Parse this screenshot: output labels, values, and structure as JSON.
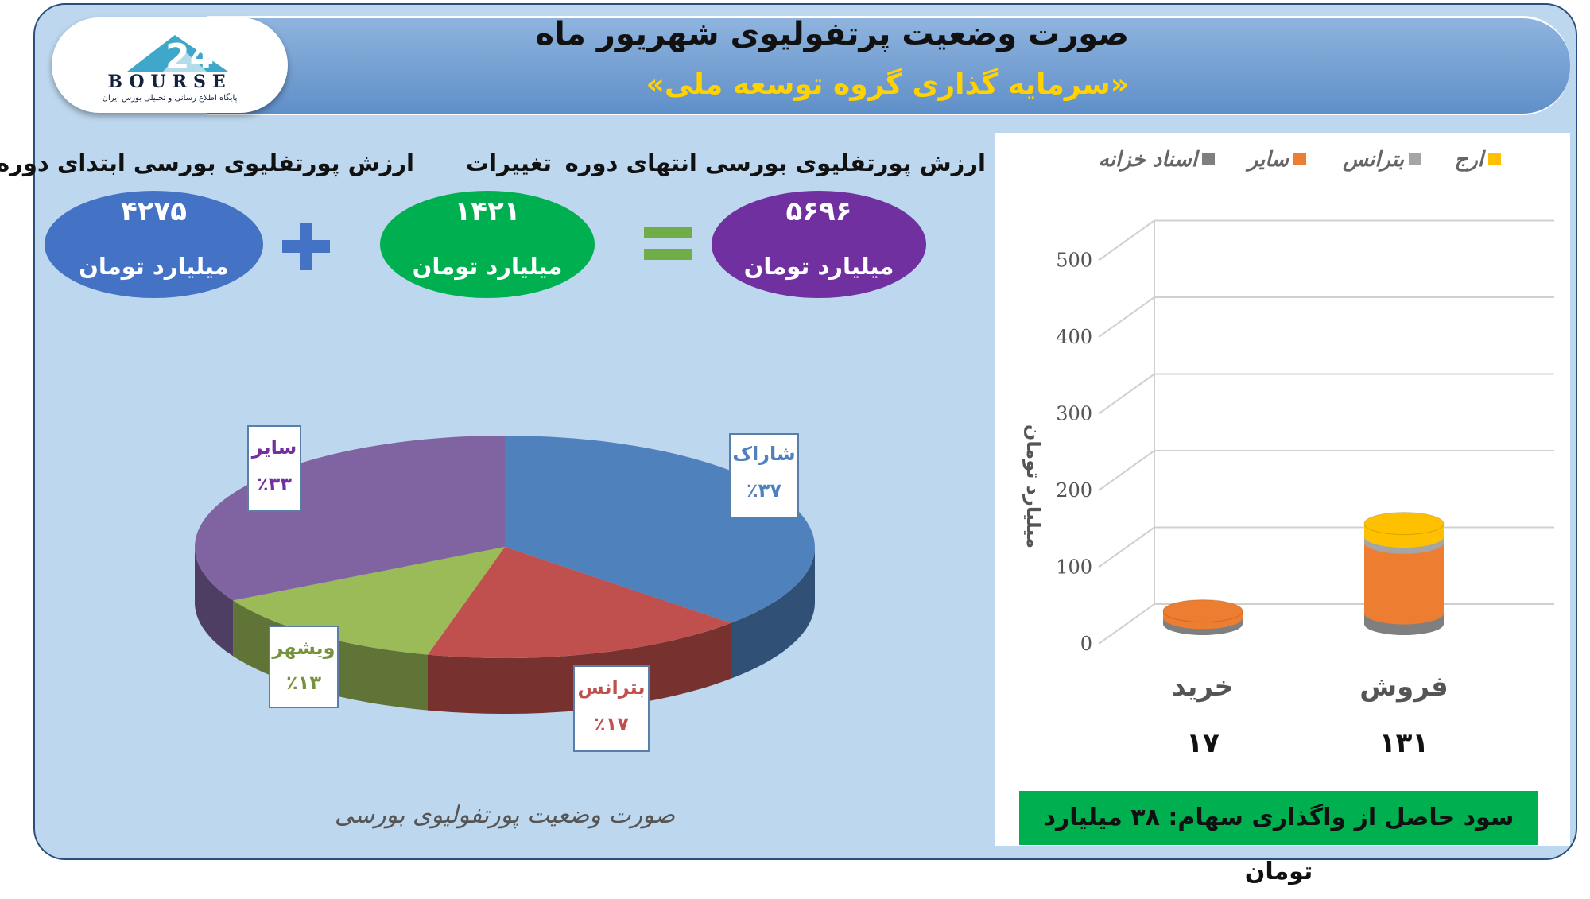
{
  "header": {
    "title": "صورت وضعیت پرتفولیوی شهریور ماه",
    "subtitle": "«سرمایه گذاری گروه توسعه ملی»"
  },
  "logo": {
    "text": "BOURSE",
    "tagline": "پایگاه اطلاع رسانی و تحلیلی بورس ایران"
  },
  "summary": {
    "start": {
      "label": "ارزش پورتفلیوی بورسی ابتدای دوره",
      "value": "۴۲۷۵",
      "unit": "میلیارد تومان",
      "color": "#4472c4"
    },
    "change": {
      "label": "تغییرات",
      "value": "۱۴۲۱",
      "unit": "میلیارد تومان",
      "color": "#00b050"
    },
    "end": {
      "label": "ارزش پورتفلیوی بورسی انتهای دوره",
      "value": "۵۶۹۶",
      "unit": "میلیارد تومان",
      "color": "#7030a0"
    },
    "plus_color": "#4472c4",
    "equals_color": "#70ad47"
  },
  "chart_data": [
    {
      "type": "pie",
      "title": "صورت وضعیت پورتفولیوی بورسی",
      "slices": [
        {
          "name": "شاراک",
          "value": 37,
          "display": "٪۳۷",
          "color": "#4f81bd"
        },
        {
          "name": "بترانس",
          "value": 17,
          "display": "٪۱۷",
          "color": "#c0504d"
        },
        {
          "name": "ویشهر",
          "value": 13,
          "display": "٪۱۳",
          "color": "#9bbb59"
        },
        {
          "name": "سایر",
          "value": 33,
          "display": "٪۳۳",
          "color": "#8064a2"
        }
      ]
    },
    {
      "type": "bar",
      "stacked": true,
      "categories": [
        "فروش",
        "خرید"
      ],
      "category_totals": [
        "۱۳۱",
        "۱۷"
      ],
      "ylabel": "میلیارد تومان",
      "ylim": [
        0,
        500
      ],
      "yticks": [
        0,
        100,
        200,
        300,
        400,
        500
      ],
      "legend_position": "top",
      "series": [
        {
          "name": "ارج",
          "values": [
            17,
            0
          ],
          "color": "#ffc000"
        },
        {
          "name": "بترانس",
          "values": [
            8,
            0
          ],
          "color": "#a5a5a5"
        },
        {
          "name": "سایر",
          "values": [
            92,
            9
          ],
          "color": "#ed7d31"
        },
        {
          "name": "اسناد خزانه",
          "values": [
            14,
            8
          ],
          "color": "#7f7f7f"
        }
      ]
    }
  ],
  "profit_text": "سود حاصل از واگذاری سهام: ۳۸ میلیارد تومان"
}
